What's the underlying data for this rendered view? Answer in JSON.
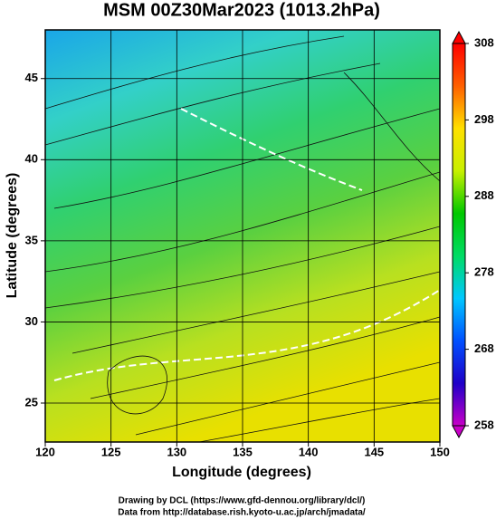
{
  "chart_data": {
    "type": "map",
    "title": "MSM 00Z30Mar2023 (1013.2hPa)",
    "xlabel": "Longitude (degrees)",
    "ylabel": "Latitude  (degrees)",
    "xlim": [
      120,
      150
    ],
    "xticks": [
      120,
      125,
      130,
      135,
      140,
      145,
      150
    ],
    "ylim": [
      22.6,
      48
    ],
    "yticks": [
      25,
      30,
      35,
      40,
      45
    ],
    "grid": true,
    "colorbar": {
      "lim": [
        258,
        308
      ],
      "ticks": [
        258,
        268,
        278,
        288,
        298,
        308
      ],
      "colors": [
        "#c800c8",
        "#1e00c8",
        "#0050ff",
        "#00c8ff",
        "#00dc64",
        "#00c800",
        "#c8f000",
        "#ffe000",
        "#ff6000",
        "#ff0000"
      ]
    },
    "field_colors": [
      "#1aa6e8",
      "#33d0c8",
      "#30d070",
      "#5ad040",
      "#b8e020",
      "#e8e000"
    ],
    "footer": [
      "Drawing by DCL (https://www.gfd-dennou.org/library/dcl/)",
      "Data from http://database.rish.kyoto-u.ac.jp/arch/jmadata/"
    ]
  }
}
